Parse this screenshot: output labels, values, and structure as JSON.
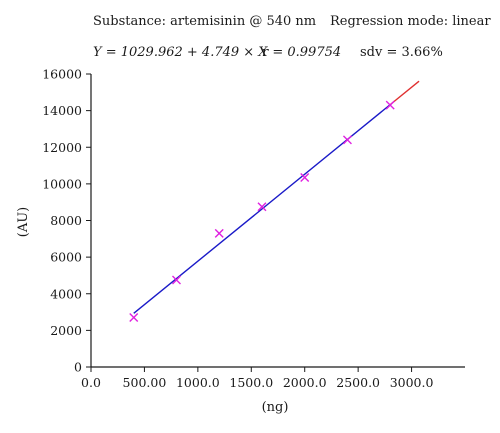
{
  "header": {
    "substance": "Substance: artemisinin @ 540 nm",
    "regression": "Regression mode: linear",
    "equation": "Y = 1029.962 + 4.749 × X",
    "r": "r = 0.99754",
    "sdv": "sdv = 3.66%"
  },
  "chart_data": {
    "type": "scatter",
    "title": "",
    "xlabel": "(ng)",
    "ylabel": "(AU)",
    "xlim": [
      0,
      3500
    ],
    "ylim": [
      0,
      16000
    ],
    "x_ticks": [
      0,
      500,
      1000,
      1500,
      2000,
      2500,
      3000
    ],
    "x_tick_labels": [
      "0.0",
      "500.00",
      "1000.0",
      "1500.0",
      "2000.0",
      "2500.0",
      "3000.0"
    ],
    "y_ticks": [
      0,
      2000,
      4000,
      6000,
      8000,
      10000,
      12000,
      14000,
      16000
    ],
    "y_tick_labels": [
      "0",
      "2000",
      "4000",
      "6000",
      "8000",
      "10000",
      "12000",
      "14000",
      "16000"
    ],
    "points": [
      {
        "x": 400,
        "y": 2700
      },
      {
        "x": 800,
        "y": 4750
      },
      {
        "x": 1200,
        "y": 7300
      },
      {
        "x": 1600,
        "y": 8750
      },
      {
        "x": 2000,
        "y": 10350
      },
      {
        "x": 2400,
        "y": 12400
      },
      {
        "x": 2800,
        "y": 14300
      }
    ],
    "regression": {
      "intercept": 1029.962,
      "slope": 4.749,
      "x_start": 400,
      "x_end": 2800,
      "x_extrapolate_end": 3070
    },
    "colors": {
      "points": "#e020e0",
      "fit_line": "#1a1ac8",
      "extrapolation": "#e03030",
      "axis": "#1a1a1a"
    },
    "grid": false
  }
}
